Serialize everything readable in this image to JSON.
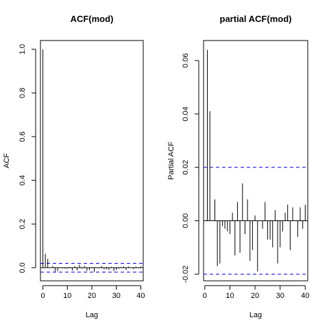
{
  "chart_data": [
    {
      "type": "bar",
      "title": "ACF(mod)",
      "xlabel": "Lag",
      "ylabel": "ACF",
      "xlim": [
        -1,
        41
      ],
      "ylim": [
        -0.06,
        1.04
      ],
      "xticks": [
        0,
        10,
        20,
        30,
        40
      ],
      "xtick_labels": [
        "0",
        "10",
        "20",
        "30",
        "40"
      ],
      "yticks": [
        0.0,
        0.2,
        0.4,
        0.6,
        0.8,
        1.0
      ],
      "ytick_labels": [
        "0.0",
        "0.2",
        "0.4",
        "0.6",
        "0.8",
        "1.0"
      ],
      "confidence_band": [
        -0.02,
        0.02
      ],
      "lags": [
        0,
        1,
        2,
        3,
        4,
        5,
        6,
        7,
        8,
        9,
        10,
        11,
        12,
        13,
        14,
        15,
        16,
        17,
        18,
        19,
        20,
        21,
        22,
        23,
        24,
        25,
        26,
        27,
        28,
        29,
        30,
        31,
        32,
        33,
        34,
        35,
        36,
        37,
        38,
        39,
        40
      ],
      "values": [
        1.0,
        0.064,
        0.041,
        0.0,
        0.008,
        -0.017,
        -0.016,
        -0.002,
        -0.003,
        -0.004,
        -0.005,
        0.003,
        -0.013,
        0.007,
        -0.012,
        0.014,
        -0.005,
        0.008,
        -0.015,
        -0.011,
        0.002,
        -0.019,
        0.0,
        -0.003,
        0.007,
        -0.007,
        -0.007,
        -0.01,
        0.004,
        -0.016,
        -0.01,
        -0.004,
        0.003,
        0.006,
        -0.011,
        0.005,
        0.0,
        -0.006,
        0.005,
        -0.003,
        0.006
      ],
      "grid": false,
      "colors": {
        "bars": "#000000",
        "band": "#0000cc"
      }
    },
    {
      "type": "bar",
      "title": "partial ACF(mod)",
      "xlabel": "Lag",
      "ylabel": "Partial ACF",
      "xlim": [
        -0.5,
        41
      ],
      "ylim": [
        -0.0225,
        0.0675
      ],
      "xticks": [
        0,
        10,
        20,
        30,
        40
      ],
      "xtick_labels": [
        "0",
        "10",
        "20",
        "30",
        "40"
      ],
      "yticks": [
        -0.02,
        0.0,
        0.02,
        0.04,
        0.06
      ],
      "ytick_labels": [
        "-0.02",
        "0.00",
        "0.02",
        "0.04",
        "0.06"
      ],
      "confidence_band": [
        -0.02,
        0.02
      ],
      "lags": [
        1,
        2,
        3,
        4,
        5,
        6,
        7,
        8,
        9,
        10,
        11,
        12,
        13,
        14,
        15,
        16,
        17,
        18,
        19,
        20,
        21,
        22,
        23,
        24,
        25,
        26,
        27,
        28,
        29,
        30,
        31,
        32,
        33,
        34,
        35,
        36,
        37,
        38,
        39,
        40
      ],
      "values": [
        0.064,
        0.041,
        0.0,
        0.008,
        -0.017,
        -0.016,
        -0.002,
        -0.003,
        -0.004,
        -0.005,
        0.003,
        -0.013,
        0.007,
        -0.012,
        0.014,
        -0.005,
        0.008,
        -0.015,
        -0.011,
        0.002,
        -0.019,
        0.0,
        -0.003,
        0.007,
        -0.007,
        -0.007,
        -0.01,
        0.004,
        -0.016,
        -0.01,
        -0.004,
        0.003,
        0.006,
        -0.011,
        0.005,
        0.0,
        -0.006,
        0.005,
        -0.003,
        0.006
      ],
      "grid": false,
      "colors": {
        "bars": "#000000",
        "band": "#0000cc"
      }
    }
  ]
}
